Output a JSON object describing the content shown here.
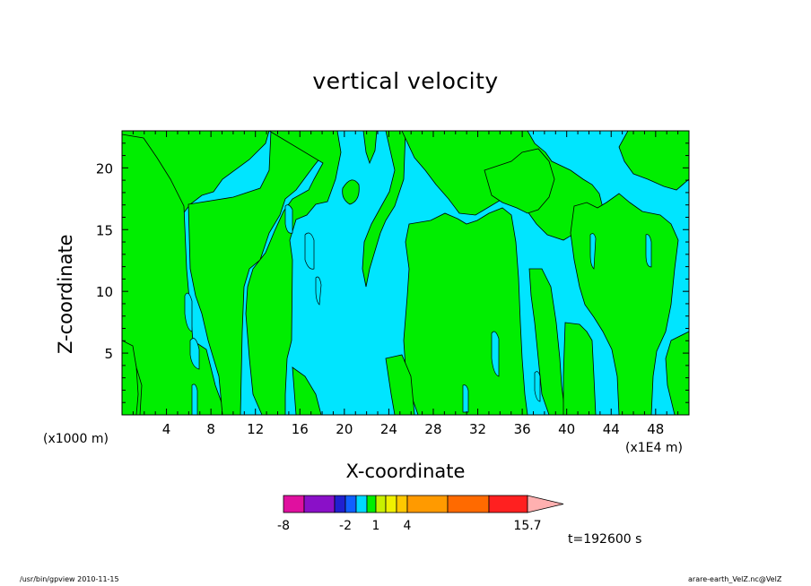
{
  "chart_data": {
    "type": "heatmap",
    "title": "vertical velocity",
    "xlabel": "X-coordinate",
    "ylabel": "Z-coordinate",
    "x_unit_left": "(x1000 m)",
    "x_unit_right": "(x1E4 m)",
    "xlim": [
      0,
      51
    ],
    "ylim": [
      0,
      23
    ],
    "x_ticks": [
      "4",
      "8",
      "12",
      "16",
      "20",
      "24",
      "28",
      "32",
      "36",
      "40",
      "44",
      "48"
    ],
    "y_ticks": [
      "5",
      "10",
      "15",
      "20"
    ],
    "fill_regions": [
      {
        "name": "negative",
        "color": "#00e5ff"
      },
      {
        "name": "positive",
        "color": "#00ee00"
      }
    ],
    "colorbar": {
      "levels": [
        "-8",
        "-2",
        "1",
        "4",
        "15.7"
      ],
      "colors": [
        "#e0109f",
        "#8a10c8",
        "#2020d0",
        "#1060ff",
        "#00d8ff",
        "#00ee00",
        "#c8f000",
        "#f0f000",
        "#ffc800",
        "#ff9a00",
        "#ff6a00",
        "#ff2020",
        "#ff7070",
        "#ffb0b0"
      ]
    },
    "annotation": "t=192600 s"
  },
  "footer": {
    "left": "/usr/bin/gpview   2010-11-15",
    "right": "arare-earth_VelZ.nc@VelZ"
  }
}
